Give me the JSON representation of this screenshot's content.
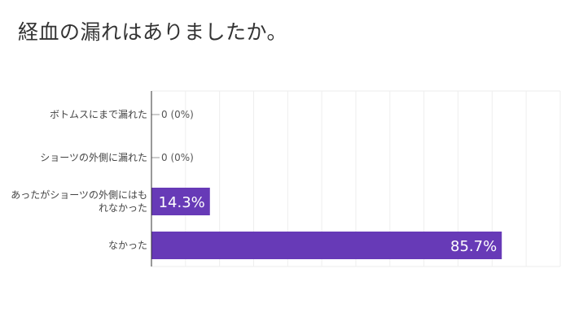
{
  "chart_data": {
    "type": "bar",
    "orientation": "horizontal",
    "title": "経血の漏れはありましたか。",
    "categories": [
      [
        "ボトムスにまで漏れた"
      ],
      [
        "ショーツの外側に漏れた"
      ],
      [
        "あったがショーツの外側にはも",
        "れなかった"
      ],
      [
        "なかった"
      ]
    ],
    "values": [
      0,
      0,
      14.3,
      85.7
    ],
    "value_labels": [
      "0 (0%)",
      "0 (0%)",
      "14.3%",
      "85.7%"
    ],
    "xlim": [
      0,
      100
    ],
    "grid": true,
    "legend": "none",
    "bar_color": "#673ab7",
    "label_color_inside": "#ffffff",
    "label_color_outside": "#555555",
    "text_color": "#444444",
    "grid_color": "#eeeeee",
    "axis_color": "#333333"
  }
}
